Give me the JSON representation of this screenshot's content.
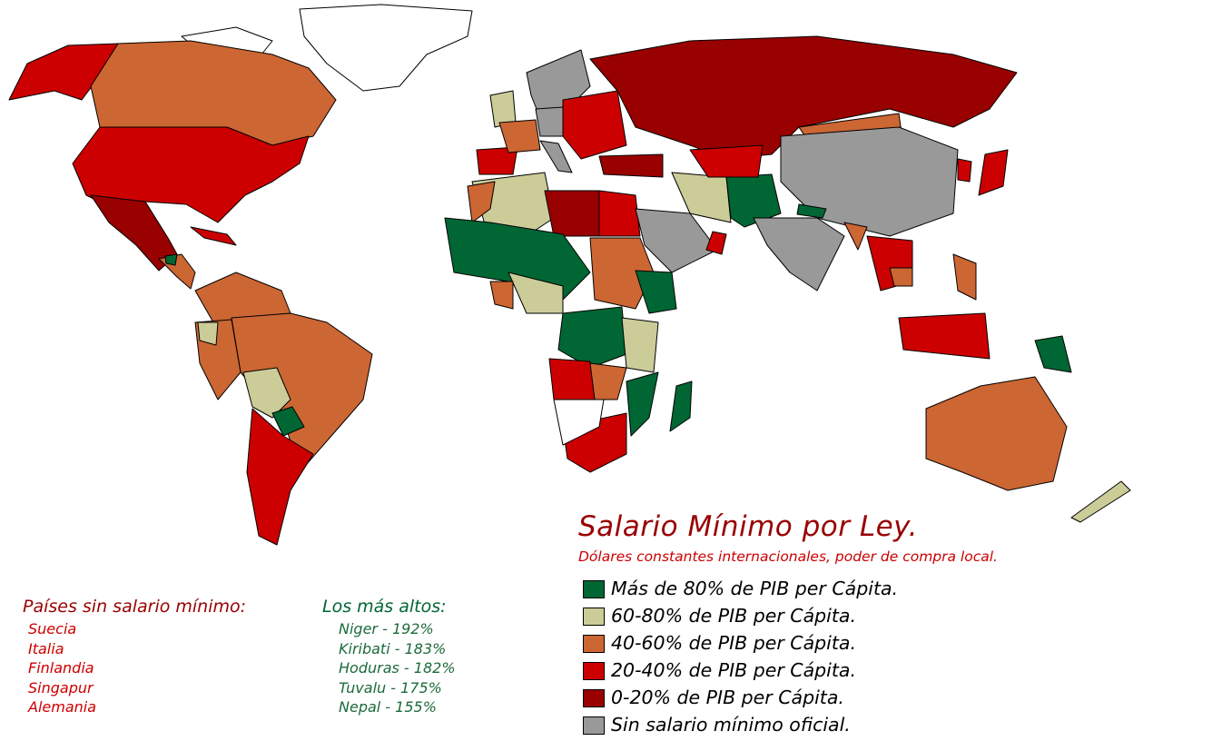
{
  "title": "Salario Mínimo por Ley.",
  "subtitle": "Dólares constantes internacionales, poder de compra local.",
  "legend": [
    {
      "label": "Más de 80% de PIB per Cápita.",
      "color": "#006633"
    },
    {
      "label": "60-80% de PIB per Cápita.",
      "color": "#cccc99"
    },
    {
      "label": "40-60% de PIB per Cápita.",
      "color": "#cc6633"
    },
    {
      "label": "20-40% de PIB per Cápita.",
      "color": "#cc0000"
    },
    {
      "label": "0-20% de PIB per Cápita.",
      "color": "#990000"
    },
    {
      "label": "Sin salario mínimo oficial.",
      "color": "#999999"
    }
  ],
  "no_minimum": {
    "heading": "Países sin salario mínimo:",
    "items": [
      "Suecia",
      "Italia",
      "Finlandia",
      "Singapur",
      "Alemania"
    ]
  },
  "highest": {
    "heading": "Los más altos:",
    "items": [
      "Niger - 192%",
      "Kiribati - 183%",
      "Hoduras - 182%",
      "Tuvalu - 175%",
      "Nepal - 155%"
    ]
  },
  "colors": {
    "nodata": "#ffffff",
    "border": "#000000"
  }
}
